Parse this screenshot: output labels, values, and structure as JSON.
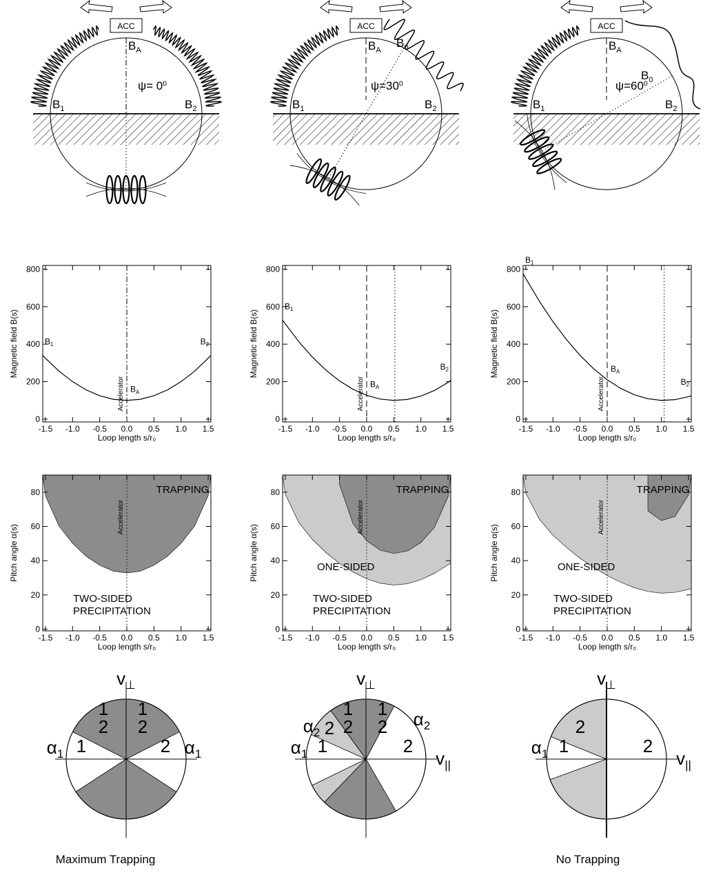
{
  "chart_data": [
    {
      "type": "line",
      "xlabel": "Loop length s/r₀",
      "ylabel": "Magnetic field  B(s)",
      "x": [
        -1.55,
        -1.5,
        -1.25,
        -1,
        -0.75,
        -0.5,
        -0.25,
        0,
        0.25,
        0.5,
        0.75,
        1,
        1.25,
        1.5,
        1.55
      ],
      "series": [
        {
          "color": "#000000",
          "values": [
            340,
            325,
            256,
            200,
            156,
            125,
            106,
            100,
            106,
            125,
            156,
            200,
            256,
            325,
            340
          ]
        }
      ],
      "xlim": [
        -1.55,
        1.55
      ],
      "ylim": [
        -15,
        820
      ],
      "xticks": [
        -1.5,
        {
          "value": -1,
          "label": "-1.0"
        },
        -0.5,
        {
          "value": 0,
          "label": "0.0"
        },
        0.5,
        {
          "value": 1,
          "label": "1.0"
        },
        1.5
      ],
      "yticks": [
        0,
        200,
        400,
        600,
        800
      ],
      "vlines": [
        {
          "x": 0,
          "style": "dashdot"
        }
      ],
      "vline_label": "Accelerator",
      "annotations": [
        {
          "text": "B",
          "sub": "1"
        },
        {
          "text": "B",
          "sub": "2"
        },
        {
          "text": "B",
          "sub": "A"
        }
      ]
    },
    {
      "type": "line",
      "xlabel": "Loop length s/r₀",
      "ylabel": "Magnetic field  B(s)",
      "x": [
        -1.55,
        -1.5,
        -1.25,
        -1,
        -0.75,
        -0.5,
        -0.25,
        0,
        0.25,
        0.5,
        0.75,
        1,
        1.25,
        1.5,
        1.55
      ],
      "series": [
        {
          "color": "#000000",
          "values": [
            528,
            508,
            413,
            331,
            261,
            204,
            159,
            127,
            107,
            100,
            105,
            123,
            153,
            196,
            206
          ]
        }
      ],
      "xlim": [
        -1.55,
        1.55
      ],
      "ylim": [
        -15,
        820
      ],
      "xticks": [
        -1.5,
        {
          "value": -1,
          "label": "-1.0"
        },
        -0.5,
        {
          "value": 0,
          "label": "0.0"
        },
        0.5,
        {
          "value": 1,
          "label": "1.0"
        },
        1.5
      ],
      "yticks": [
        0,
        200,
        400,
        600,
        800
      ],
      "vlines": [
        {
          "x": 0,
          "style": "dashed"
        },
        {
          "x": 0.52,
          "style": "dotted"
        }
      ],
      "vline_label": "Accelerator",
      "annotations": [
        {
          "text": "B",
          "sub": "1"
        },
        {
          "text": "B",
          "sub": "2"
        },
        {
          "text": "B",
          "sub": "A"
        }
      ]
    },
    {
      "type": "line",
      "xlabel": "Loop length s/r₀",
      "ylabel": "Magnetic field  B(s)",
      "x": [
        -1.55,
        -1.5,
        -1.25,
        -1,
        -0.75,
        -0.5,
        -0.25,
        0,
        0.25,
        0.5,
        0.75,
        1,
        1.25,
        1.5,
        1.55
      ],
      "series": [
        {
          "color": "#000000",
          "values": [
            776,
            750,
            629,
            520,
            424,
            340,
            269,
            210,
            164,
            130,
            109,
            100,
            104,
            120,
            125
          ]
        }
      ],
      "xlim": [
        -1.55,
        1.55
      ],
      "ylim": [
        -15,
        820
      ],
      "xticks": [
        -1.5,
        {
          "value": -1,
          "label": "-1.0"
        },
        -0.5,
        {
          "value": 0,
          "label": "0.0"
        },
        0.5,
        {
          "value": 1,
          "label": "1.0"
        },
        1.5
      ],
      "yticks": [
        0,
        200,
        400,
        600,
        800
      ],
      "vlines": [
        {
          "x": 0,
          "style": "dashed"
        },
        {
          "x": 1.05,
          "style": "dotted"
        }
      ],
      "vline_label": "Accelerator",
      "annotations": [
        {
          "text": "B",
          "sub": "1"
        },
        {
          "text": "B",
          "sub": "2"
        },
        {
          "text": "B",
          "sub": "A"
        }
      ]
    },
    {
      "type": "area",
      "xlabel": "Loop length s/r₀",
      "ylabel": "Pitch angle  α(s)",
      "x": [
        -1.55,
        -1.5,
        -1.25,
        -1,
        -0.75,
        -0.5,
        -0.25,
        0,
        0.25,
        0.5,
        0.75,
        1,
        1.25,
        1.5,
        1.55
      ],
      "series": [
        {
          "color": "#8c8c8c",
          "values": [
            90,
            77.9,
            60.2,
            50.1,
            42.6,
            37.3,
            33.9,
            32.8,
            33.9,
            37.3,
            42.6,
            50.1,
            60.2,
            77.9,
            90
          ]
        }
      ],
      "xlim": [
        -1.55,
        1.55
      ],
      "ylim": [
        -1,
        90
      ],
      "xticks": [
        -1.5,
        {
          "value": -1,
          "label": "-1.0"
        },
        -0.5,
        {
          "value": 0,
          "label": "0.0"
        },
        0.5,
        {
          "value": 1,
          "label": "1.0"
        },
        1.5
      ],
      "yticks": [
        0,
        20,
        40,
        60,
        80
      ],
      "vlines": [
        {
          "x": 0,
          "style": "dotted"
        }
      ],
      "vline_label": "Accelerator",
      "labels": {
        "trapping": "TRAPPING",
        "two_sided": [
          "TWO-SIDED",
          "PRECIPITATION"
        ]
      }
    },
    {
      "type": "area",
      "xlabel": "Loop length s/r₀",
      "ylabel": "Pitch angle  α(s)",
      "x": [
        -1.55,
        -1.5,
        -1.25,
        -1,
        -0.75,
        -0.5,
        -0.25,
        0,
        0.25,
        0.5,
        0.75,
        1,
        1.25,
        1.5,
        1.55
      ],
      "series": [
        {
          "color": "#cbcbcb",
          "values": [
            90,
            78.8,
            62.2,
            52.4,
            44.7,
            38.4,
            33.3,
            29.4,
            26.8,
            25.8,
            26.5,
            28.9,
            32.6,
            37.5,
            38.7
          ]
        },
        {
          "color": "#8c8c8c",
          "values": [
            null,
            null,
            null,
            null,
            null,
            84.4,
            61.5,
            51.7,
            46.1,
            44.2,
            45.6,
            50.6,
            59.5,
            77.3,
            90
          ]
        }
      ],
      "xlim": [
        -1.55,
        1.55
      ],
      "ylim": [
        -1,
        90
      ],
      "xticks": [
        -1.5,
        {
          "value": -1,
          "label": "-1.0"
        },
        -0.5,
        {
          "value": 0,
          "label": "0.0"
        },
        0.5,
        {
          "value": 1,
          "label": "1.0"
        },
        1.5
      ],
      "yticks": [
        0,
        20,
        40,
        60,
        80
      ],
      "vlines": [
        {
          "x": 0,
          "style": "dotted"
        }
      ],
      "vline_label": "Accelerator",
      "labels": {
        "trapping": "TRAPPING",
        "one_sided": "ONE-SIDED",
        "two_sided": [
          "TWO-SIDED",
          "PRECIPITATION"
        ]
      }
    },
    {
      "type": "area",
      "xlabel": "Loop length s/r₀",
      "ylabel": "Pitch angle  α(s)",
      "x": [
        -1.55,
        -1.5,
        -1.25,
        -1,
        -0.75,
        -0.5,
        -0.25,
        0,
        0.25,
        0.5,
        0.75,
        1,
        1.25,
        1.5,
        1.55
      ],
      "series": [
        {
          "color": "#cbcbcb",
          "values": [
            90,
            79.4,
            64.2,
            54.9,
            47.7,
            41.4,
            36.1,
            31.3,
            27.4,
            24.2,
            22.0,
            21.0,
            21.5,
            23.2,
            23.7
          ]
        },
        {
          "color": "#8c8c8c",
          "values": [
            null,
            null,
            null,
            null,
            null,
            null,
            null,
            null,
            null,
            null,
            69.0,
            63.4,
            65.8,
            78.5,
            90
          ]
        }
      ],
      "xlim": [
        -1.55,
        1.55
      ],
      "ylim": [
        -1,
        90
      ],
      "xticks": [
        -1.5,
        {
          "value": -1,
          "label": "-1.0"
        },
        -0.5,
        {
          "value": 0,
          "label": "0.0"
        },
        0.5,
        {
          "value": 1,
          "label": "1.0"
        },
        1.5
      ],
      "yticks": [
        0,
        20,
        40,
        60,
        80
      ],
      "vlines": [
        {
          "x": 0,
          "style": "dotted"
        }
      ],
      "vline_label": "Accelerator",
      "labels": {
        "trapping": "TRAPPING",
        "one_sided": "ONE-SIDED",
        "two_sided": [
          "TWO-SIDED",
          "PRECIPITATION"
        ]
      }
    }
  ],
  "loop_diagrams": [
    {
      "psi": 0,
      "acc": "ACC",
      "labels": [
        {
          "text": "B",
          "sub": "A"
        },
        {
          "text": "B",
          "sub": "1"
        },
        {
          "text": "B",
          "sub": "2"
        },
        {
          "text": "ψ= 0",
          "sup": "0"
        }
      ]
    },
    {
      "psi": 30,
      "acc": "ACC",
      "labels": [
        {
          "text": "B",
          "sub": "A"
        },
        {
          "text": "B",
          "sub": "1"
        },
        {
          "text": "B",
          "sub": "2"
        },
        {
          "text": "ψ=30",
          "sup": "0"
        },
        {
          "text": "B",
          "sub": "0"
        }
      ]
    },
    {
      "psi": 60,
      "acc": "ACC",
      "labels": [
        {
          "text": "B",
          "sub": "A"
        },
        {
          "text": "B",
          "sub": "1"
        },
        {
          "text": "B",
          "sub": "2"
        },
        {
          "text": "ψ=60",
          "sup": "0"
        },
        {
          "text": "B",
          "sub": "0"
        }
      ]
    }
  ],
  "velocity_diagrams": [
    {
      "labels": [
        {
          "text": "v",
          "sub": "⊥"
        },
        {
          "text": "α",
          "sub": "1"
        },
        {
          "text": "α",
          "sub": "1"
        },
        {
          "text": "1"
        },
        {
          "text": "2"
        },
        {
          "text": "1"
        },
        {
          "text": "2"
        },
        {
          "text": "1"
        },
        {
          "text": "2"
        }
      ]
    },
    {
      "labels": [
        {
          "text": "v",
          "sub": "⊥"
        },
        {
          "text": "v",
          "sub": "||"
        },
        {
          "text": "α",
          "sub": "2"
        },
        {
          "text": "α",
          "sub": "2"
        },
        {
          "text": "α",
          "sub": "1"
        },
        {
          "text": "1"
        },
        {
          "text": "2"
        },
        {
          "text": "1"
        },
        {
          "text": "2"
        },
        {
          "text": "1"
        },
        {
          "text": "2"
        },
        {
          "text": "2"
        }
      ]
    },
    {
      "labels": [
        {
          "text": "v",
          "sub": "⊥"
        },
        {
          "text": "v",
          "sub": "||"
        },
        {
          "text": "α",
          "sub": "1"
        },
        {
          "text": "1"
        },
        {
          "text": "2"
        },
        {
          "text": "2"
        }
      ]
    }
  ],
  "captions": [
    "Maximum Trapping",
    "No Trapping"
  ]
}
